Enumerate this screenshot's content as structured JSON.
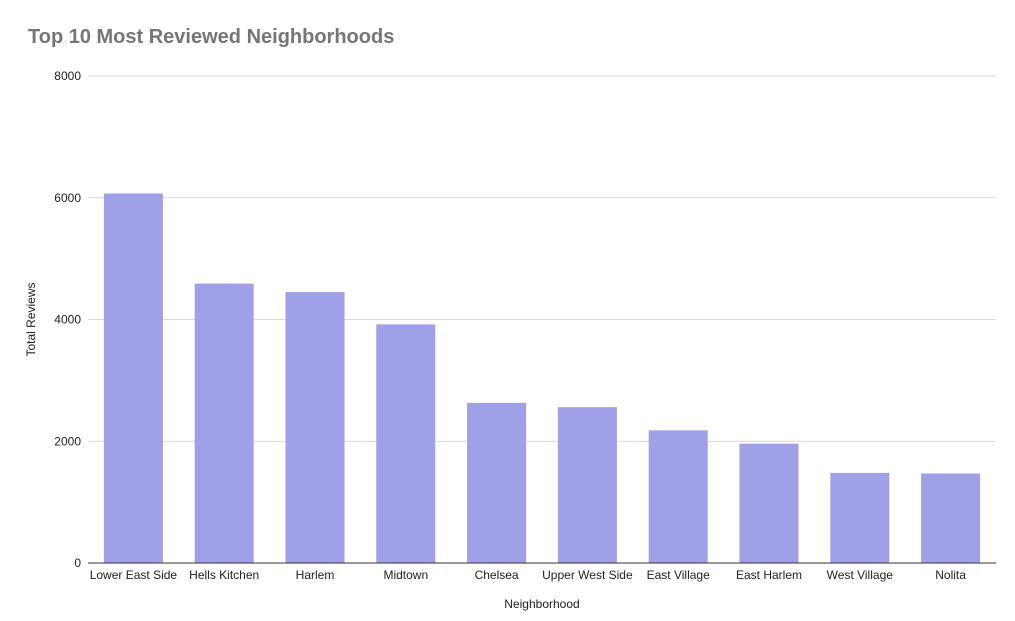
{
  "chart_data": {
    "type": "bar",
    "title": "Top 10 Most Reviewed Neighborhoods",
    "xlabel": "Neighborhood",
    "ylabel": "Total Reviews",
    "categories": [
      "Lower East Side",
      "Hells Kitchen",
      "Harlem",
      "Midtown",
      "Chelsea",
      "Upper West Side",
      "East Village",
      "East Harlem",
      "West Village",
      "Nolita"
    ],
    "values": [
      6070,
      4590,
      4450,
      3920,
      2630,
      2560,
      2180,
      1960,
      1480,
      1470
    ],
    "ylim": [
      0,
      8000
    ],
    "yticks": [
      0,
      2000,
      4000,
      6000,
      8000
    ],
    "grid": true,
    "legend": "none",
    "colors": {
      "bar": "#a0a0e8",
      "grid": "#d9d9d9",
      "axis": "#333333",
      "title": "#757575"
    }
  }
}
